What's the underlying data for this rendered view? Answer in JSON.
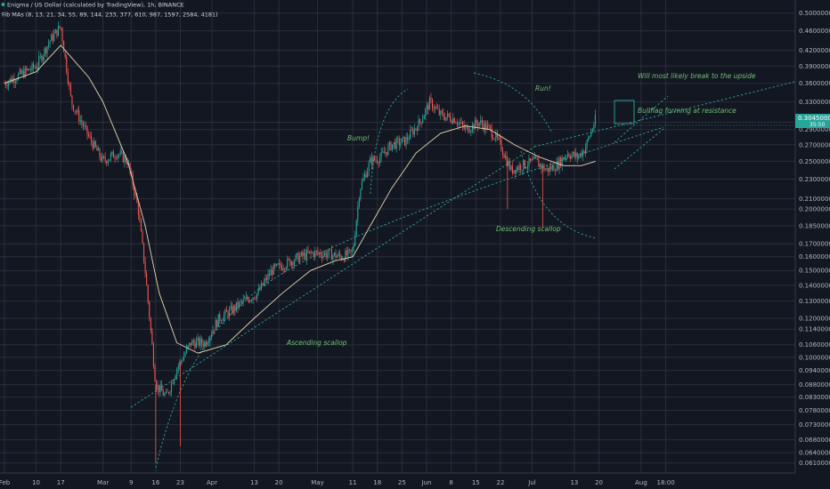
{
  "header": {
    "title": "Enigma / US Dollar (calculated by TradingView), 1h, BINANCE",
    "indicator": "Fib MAs (8, 13, 21, 34, 55, 89, 144, 233, 377, 610, 987, 1597, 2584, 4181)"
  },
  "colors": {
    "background": "#131722",
    "up": "#26a69a",
    "down": "#ef5350",
    "ma": "#e6d6b0",
    "trendline": "#2fa89a",
    "annotation": "#6fbf73",
    "price_label": "#26a69a"
  },
  "annotations": {
    "bump": "Bump!",
    "run": "Run!",
    "ascending_scallop": "Ascending scallop",
    "descending_scallop": "Descending scallop",
    "bullflag": "Bullflag forming at resistance",
    "break_upside": "Will most likely break to the upside"
  },
  "current_price": {
    "value": "0.30450000",
    "sub": "35:50"
  },
  "chart_data": {
    "type": "candlestick",
    "symbol": "Enigma / US Dollar",
    "interval": "1h",
    "exchange": "BINANCE",
    "yscale": "log",
    "ylim": [
      0.0592,
      0.514
    ],
    "y_ticks": [
      "0.50000000",
      "0.46000000",
      "0.42000000",
      "0.39000000",
      "0.36000000",
      "0.33000000",
      "0.30000000",
      "0.29000000",
      "0.27000000",
      "0.25000000",
      "0.23000000",
      "0.21000000",
      "0.20000000",
      "0.18500000",
      "0.17000000",
      "0.16000000",
      "0.15000000",
      "0.14000000",
      "0.13000000",
      "0.12000000",
      "0.11400000",
      "0.10600000",
      "0.10000000",
      "0.09400000",
      "0.08800000",
      "0.08300000",
      "0.07800000",
      "0.07300000",
      "0.06800000",
      "0.06400000",
      "0.06100000"
    ],
    "x_ticks": [
      "Feb",
      "10",
      "17",
      "Mar",
      "9",
      "16",
      "23",
      "Apr",
      "13",
      "20",
      "May",
      "11",
      "18",
      "25",
      "Jun",
      "8",
      "15",
      "22",
      "Jul",
      "13",
      "20",
      "Aug",
      "18:00"
    ],
    "x_tick_dates": [
      "2019-02-01",
      "2019-02-10",
      "2019-02-17",
      "2019-03-01",
      "2019-03-09",
      "2019-03-16",
      "2019-03-23",
      "2019-04-01",
      "2019-04-13",
      "2019-04-20",
      "2019-05-01",
      "2019-05-11",
      "2019-05-18",
      "2019-05-25",
      "2019-06-01",
      "2019-06-08",
      "2019-06-15",
      "2019-06-22",
      "2019-07-01",
      "2019-07-13",
      "2019-07-20",
      "2019-08-01",
      "2019-08-08"
    ],
    "price_path": [
      [
        "2019-02-01",
        0.36
      ],
      [
        "2019-02-04",
        0.37
      ],
      [
        "2019-02-10",
        0.39
      ],
      [
        "2019-02-14",
        0.44
      ],
      [
        "2019-02-17",
        0.47
      ],
      [
        "2019-02-20",
        0.33
      ],
      [
        "2019-02-25",
        0.28
      ],
      [
        "2019-03-01",
        0.25
      ],
      [
        "2019-03-05",
        0.26
      ],
      [
        "2019-03-08",
        0.25
      ],
      [
        "2019-03-11",
        0.2
      ],
      [
        "2019-03-13",
        0.15
      ],
      [
        "2019-03-16",
        0.088
      ],
      [
        "2019-03-19",
        0.083
      ],
      [
        "2019-03-22",
        0.095
      ],
      [
        "2019-03-26",
        0.107
      ],
      [
        "2019-03-30",
        0.107
      ],
      [
        "2019-04-03",
        0.12
      ],
      [
        "2019-04-07",
        0.125
      ],
      [
        "2019-04-10",
        0.13
      ],
      [
        "2019-04-14",
        0.135
      ],
      [
        "2019-04-18",
        0.15
      ],
      [
        "2019-04-22",
        0.155
      ],
      [
        "2019-04-26",
        0.16
      ],
      [
        "2019-04-30",
        0.163
      ],
      [
        "2019-05-04",
        0.162
      ],
      [
        "2019-05-08",
        0.16
      ],
      [
        "2019-05-11",
        0.163
      ],
      [
        "2019-05-13",
        0.22
      ],
      [
        "2019-05-16",
        0.25
      ],
      [
        "2019-05-19",
        0.255
      ],
      [
        "2019-05-22",
        0.27
      ],
      [
        "2019-05-26",
        0.275
      ],
      [
        "2019-05-30",
        0.3
      ],
      [
        "2019-06-02",
        0.33
      ],
      [
        "2019-06-05",
        0.31
      ],
      [
        "2019-06-09",
        0.305
      ],
      [
        "2019-06-12",
        0.29
      ],
      [
        "2019-06-16",
        0.3
      ],
      [
        "2019-06-19",
        0.29
      ],
      [
        "2019-06-22",
        0.27
      ],
      [
        "2019-06-25",
        0.24
      ],
      [
        "2019-06-28",
        0.245
      ],
      [
        "2019-07-02",
        0.25
      ],
      [
        "2019-07-05",
        0.24
      ],
      [
        "2019-07-08",
        0.245
      ],
      [
        "2019-07-11",
        0.26
      ],
      [
        "2019-07-14",
        0.255
      ],
      [
        "2019-07-16",
        0.265
      ],
      [
        "2019-07-18",
        0.29
      ],
      [
        "2019-07-19",
        0.304
      ]
    ],
    "ma_path": [
      [
        "2019-02-01",
        0.36
      ],
      [
        "2019-02-10",
        0.38
      ],
      [
        "2019-02-17",
        0.43
      ],
      [
        "2019-02-25",
        0.37
      ],
      [
        "2019-03-01",
        0.33
      ],
      [
        "2019-03-08",
        0.25
      ],
      [
        "2019-03-13",
        0.185
      ],
      [
        "2019-03-17",
        0.135
      ],
      [
        "2019-03-22",
        0.107
      ],
      [
        "2019-03-28",
        0.102
      ],
      [
        "2019-04-05",
        0.106
      ],
      [
        "2019-04-13",
        0.12
      ],
      [
        "2019-04-21",
        0.135
      ],
      [
        "2019-04-29",
        0.15
      ],
      [
        "2019-05-06",
        0.157
      ],
      [
        "2019-05-11",
        0.16
      ],
      [
        "2019-05-16",
        0.185
      ],
      [
        "2019-05-22",
        0.22
      ],
      [
        "2019-05-29",
        0.26
      ],
      [
        "2019-06-05",
        0.285
      ],
      [
        "2019-06-12",
        0.295
      ],
      [
        "2019-06-19",
        0.29
      ],
      [
        "2019-06-26",
        0.27
      ],
      [
        "2019-07-03",
        0.255
      ],
      [
        "2019-07-10",
        0.245
      ],
      [
        "2019-07-15",
        0.245
      ],
      [
        "2019-07-19",
        0.25
      ]
    ],
    "wicks": [
      {
        "date": "2019-03-16",
        "low": 0.061
      },
      {
        "date": "2019-03-23",
        "low": 0.066
      },
      {
        "date": "2019-06-24",
        "low": 0.2
      },
      {
        "date": "2019-07-04",
        "low": 0.183
      }
    ],
    "current_price": 0.3045
  }
}
